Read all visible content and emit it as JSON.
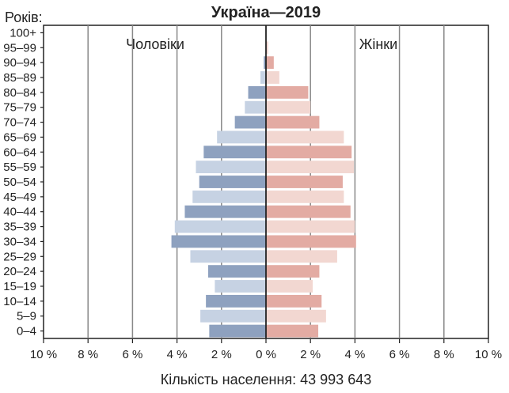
{
  "chart_data": {
    "type": "bar",
    "title": "Україна—2019",
    "ylabel": "Років:",
    "xlabel": "Кількість населення: 43 993 643",
    "ylim_label": "",
    "categories": [
      "100+",
      "95–99",
      "90–94",
      "85–89",
      "80–84",
      "75–79",
      "70–74",
      "65–69",
      "60–64",
      "55–59",
      "50–54",
      "45–49",
      "40–44",
      "35–39",
      "30–34",
      "25–29",
      "20–24",
      "15–19",
      "10–14",
      "5–9",
      "0–4"
    ],
    "series": [
      {
        "name": "Чоловіки",
        "values": [
          0.0,
          0.02,
          0.1,
          0.25,
          0.8,
          0.95,
          1.4,
          2.2,
          2.8,
          3.15,
          3.0,
          3.3,
          3.65,
          4.1,
          4.25,
          3.4,
          2.6,
          2.3,
          2.7,
          2.95,
          2.55
        ]
      },
      {
        "name": "Жінки",
        "values": [
          0.02,
          0.1,
          0.35,
          0.6,
          1.9,
          2.0,
          2.4,
          3.5,
          3.85,
          3.95,
          3.45,
          3.5,
          3.8,
          4.0,
          4.05,
          3.2,
          2.4,
          2.1,
          2.5,
          2.7,
          2.35
        ]
      }
    ],
    "xticks": [
      "10 %",
      "8 %",
      "6 %",
      "4 %",
      "2 %",
      "0 %",
      "2 %",
      "4 %",
      "6 %",
      "8 %",
      "10 %"
    ],
    "xlim": [
      -10,
      10
    ],
    "grid": true,
    "colors": {
      "male_dark": "#8ea1bf",
      "male_light": "#c6d2e3",
      "female_dark": "#e3aba3",
      "female_light": "#f2d7d1",
      "grid": "#888888",
      "axis": "#222222"
    }
  }
}
